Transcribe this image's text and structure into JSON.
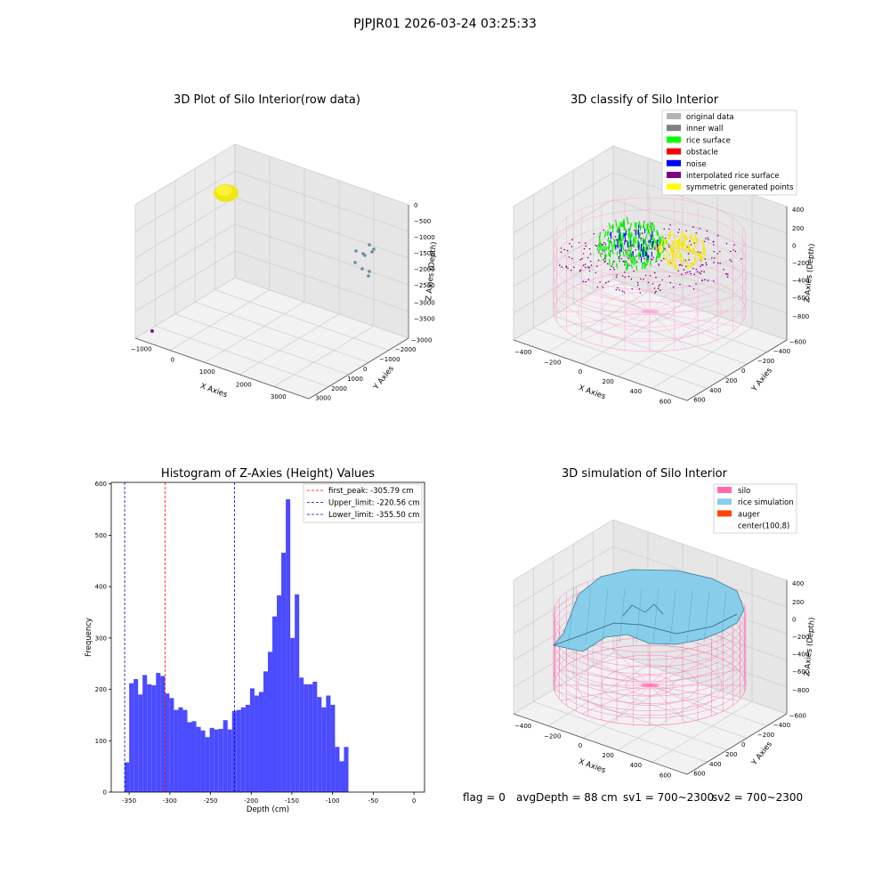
{
  "suptitle": "PJPJR01 2026-03-24 03:25:33",
  "footer": {
    "flag": "flag = 0",
    "avg_depth": "avgDepth = 88 cm",
    "sv1": "sv1 = 700~2300",
    "sv2": "sv2 = 700~2300"
  },
  "panels": {
    "raw": {
      "title": "3D Plot of Silo Interior(row data)",
      "xlabel": "X Axies",
      "ylabel": "Y Axies",
      "zlabel": "Z Axies (Depth)",
      "xticks": [
        "−1000",
        "0",
        "1000",
        "2000",
        "3000"
      ],
      "yticks": [
        "3000",
        "2000",
        "1000",
        "0",
        "−1000",
        "−2000",
        "−3000"
      ],
      "zticks": [
        "0",
        "−500",
        "−1000",
        "−1500",
        "−2000",
        "−2500",
        "−3000",
        "−3500"
      ]
    },
    "classify": {
      "title": "3D classify of Silo Interior",
      "xlabel": "X Axies",
      "ylabel": "Y Axies",
      "zlabel": "Z Axies (Depth)",
      "xticks": [
        "−400",
        "−200",
        "0",
        "200",
        "400",
        "600"
      ],
      "yticks": [
        "600",
        "400",
        "200",
        "0",
        "−200",
        "−400",
        "−600"
      ],
      "zticks": [
        "400",
        "200",
        "0",
        "−200",
        "−400",
        "−600",
        "−800"
      ],
      "legend": [
        {
          "label": "original data",
          "color": "#b3b3b3"
        },
        {
          "label": "inner wall",
          "color": "#808080"
        },
        {
          "label": "rice surface",
          "color": "#00ff00"
        },
        {
          "label": "obstacle",
          "color": "#ff0000"
        },
        {
          "label": "noise",
          "color": "#0000ff"
        },
        {
          "label": "interpolated rice surface",
          "color": "#800080"
        },
        {
          "label": "symmetric generated points",
          "color": "#ffff00"
        }
      ]
    },
    "simulation": {
      "title": "3D simulation of Silo Interior",
      "xlabel": "X Axies",
      "ylabel": "Y Axies",
      "zlabel": "Z Axies (Depth)",
      "xticks": [
        "−400",
        "−200",
        "0",
        "200",
        "400",
        "600"
      ],
      "yticks": [
        "600",
        "400",
        "200",
        "0",
        "−200",
        "−400",
        "−600"
      ],
      "zticks": [
        "400",
        "200",
        "0",
        "−200",
        "−400",
        "−600",
        "−800"
      ],
      "legend": [
        {
          "label": "silo",
          "color": "#ff69b4"
        },
        {
          "label": "rice simulation",
          "color": "#87ceeb"
        },
        {
          "label": "auger",
          "color": "#ff4500"
        },
        {
          "label": "center(100,8)",
          "color": "none"
        }
      ]
    }
  },
  "chart_data": {
    "type": "bar",
    "title": "Histogram of Z-Axies (Height) Values",
    "xlabel": "Depth (cm)",
    "ylabel": "Frequency",
    "xlim": [
      -372,
      13
    ],
    "ylim": [
      0,
      603
    ],
    "xticks": [
      -350,
      -300,
      -250,
      -200,
      -150,
      -100,
      -50,
      0
    ],
    "yticks": [
      0,
      100,
      200,
      300,
      400,
      500,
      600
    ],
    "bin_start": -355.5,
    "bin_width": 5.5,
    "bar_color": "#4b4bff",
    "values": [
      58,
      212,
      220,
      190,
      228,
      210,
      208,
      232,
      226,
      192,
      183,
      160,
      165,
      160,
      136,
      138,
      127,
      120,
      107,
      125,
      122,
      123,
      140,
      122,
      158,
      160,
      165,
      170,
      202,
      188,
      195,
      235,
      273,
      342,
      383,
      466,
      570,
      300,
      385,
      223,
      210,
      210,
      215,
      185,
      165,
      188,
      170,
      88,
      60,
      88
    ],
    "vlines": [
      {
        "label": "first_peak: -305.79 cm",
        "x": -305.79,
        "color": "#ff0000"
      },
      {
        "label": "Upper_limit: -220.56 cm",
        "x": -220.56,
        "color": "#0000cc"
      },
      {
        "label": "Lower_limit: -355.50 cm",
        "x": -355.5,
        "color": "#0000cc"
      }
    ]
  }
}
